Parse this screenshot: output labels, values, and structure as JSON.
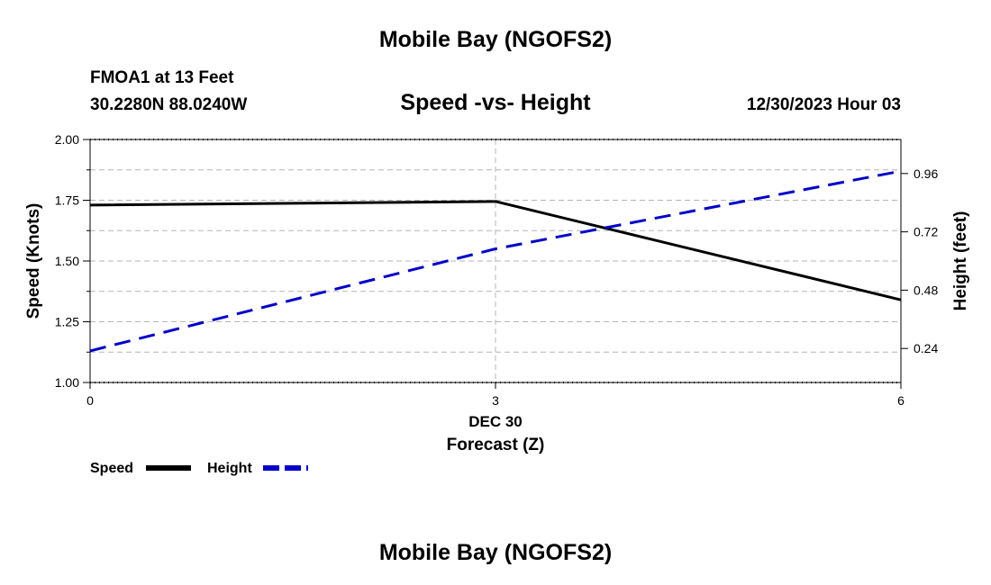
{
  "header": {
    "title": "Mobile Bay (NGOFS2)",
    "station": "FMOA1 at 13 Feet",
    "coords": "30.2280N  88.0240W",
    "subtitle": "Speed -vs- Height",
    "datetime": "12/30/2023 Hour 03",
    "footer_title": "Mobile Bay (NGOFS2)"
  },
  "chart_data": {
    "type": "line",
    "title": "Speed -vs- Height",
    "x": [
      0,
      3,
      6
    ],
    "x_tick_labels": [
      "0",
      "3",
      "6"
    ],
    "x_date_label": "DEC 30",
    "xlabel": "Forecast (Z)",
    "xlim": [
      0,
      6
    ],
    "ylabel": "Speed (Knots)",
    "ylim": [
      1.0,
      2.0
    ],
    "y_ticks": [
      1.0,
      1.25,
      1.5,
      1.75,
      2.0
    ],
    "y_tick_labels": [
      "1.00",
      "1.25",
      "1.50",
      "1.75",
      "2.00"
    ],
    "y2label": "Height (feet)",
    "y2lim": [
      0.1,
      1.1
    ],
    "y2_ticks": [
      0.24,
      0.48,
      0.72,
      0.96
    ],
    "y2_tick_labels": [
      "0.24",
      "0.48",
      "0.72",
      "0.96"
    ],
    "grid": true,
    "legend_position": "bottom-left",
    "series": [
      {
        "name": "Speed",
        "axis": "left",
        "style": "solid",
        "color": "#000000",
        "values": [
          1.73,
          1.745,
          1.34
        ]
      },
      {
        "name": "Height",
        "axis": "right",
        "style": "dashed",
        "color": "#0000cc",
        "values": [
          0.23,
          0.65,
          0.97
        ]
      }
    ]
  }
}
